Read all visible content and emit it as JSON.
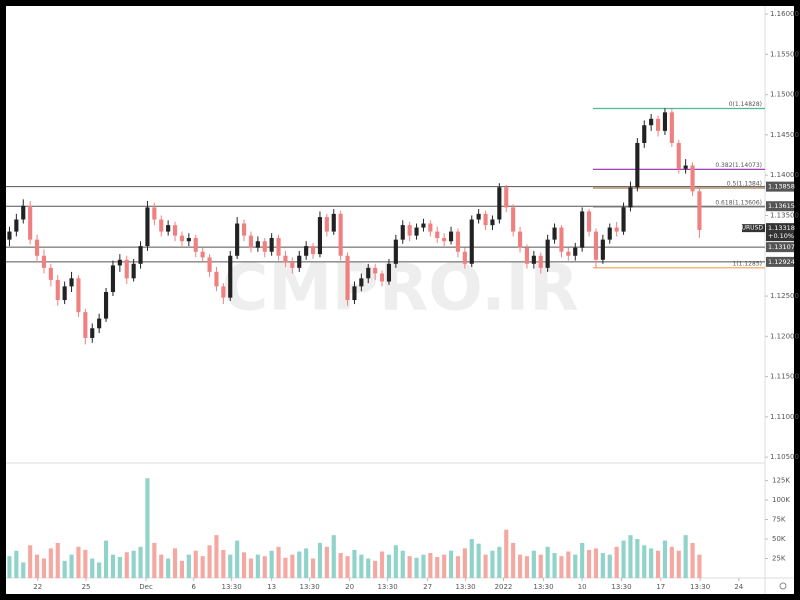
{
  "chart_data": {
    "type": "candlestick",
    "watermark": "CMPRO.IR",
    "open": [
      1.132,
      1.133,
      1.1345,
      1.1362,
      1.132,
      1.13,
      1.1285,
      1.127,
      1.1245,
      1.1262,
      1.1272,
      1.123,
      1.1198,
      1.121,
      1.1222,
      1.1255,
      1.1288,
      1.1295,
      1.1272,
      1.129,
      1.1312,
      1.136,
      1.1345,
      1.133,
      1.1338,
      1.1325,
      1.1318,
      1.1322,
      1.1305,
      1.1298,
      1.128,
      1.1262,
      1.1248,
      1.13,
      1.134,
      1.1325,
      1.131,
      1.1318,
      1.1305,
      1.1322,
      1.13,
      1.1292,
      1.1285,
      1.13,
      1.1312,
      1.1302,
      1.1348,
      1.133,
      1.1352,
      1.13,
      1.1245,
      1.1262,
      1.1272,
      1.1285,
      1.1278,
      1.1268,
      1.129,
      1.132,
      1.1338,
      1.1325,
      1.1335,
      1.134,
      1.133,
      1.1322,
      1.1318,
      1.133,
      1.1305,
      1.129,
      1.1345,
      1.1352,
      1.1338,
      1.1345,
      1.1385,
      1.136,
      1.133,
      1.131,
      1.129,
      1.13,
      1.1285,
      1.132,
      1.1335,
      1.1305,
      1.13,
      1.131,
      1.1355,
      1.133,
      1.1295,
      1.132,
      1.1335,
      1.133,
      1.136,
      1.1385,
      1.144,
      1.1462,
      1.147,
      1.1455,
      1.1478,
      1.144,
      1.1408,
      1.1412,
      1.138
    ],
    "high": [
      1.1336,
      1.1352,
      1.137,
      1.1368,
      1.1326,
      1.1308,
      1.129,
      1.1276,
      1.1268,
      1.128,
      1.1276,
      1.1234,
      1.1216,
      1.1228,
      1.126,
      1.1294,
      1.1302,
      1.13,
      1.1296,
      1.1318,
      1.1368,
      1.1366,
      1.135,
      1.1344,
      1.1342,
      1.133,
      1.1328,
      1.1326,
      1.131,
      1.1302,
      1.1286,
      1.1266,
      1.1306,
      1.1348,
      1.1345,
      1.133,
      1.1324,
      1.1322,
      1.1328,
      1.1326,
      1.1306,
      1.1298,
      1.1306,
      1.1318,
      1.1316,
      1.1355,
      1.1352,
      1.1358,
      1.1356,
      1.1304,
      1.1268,
      1.1278,
      1.129,
      1.129,
      1.1282,
      1.1296,
      1.1326,
      1.1344,
      1.1342,
      1.134,
      1.1346,
      1.1344,
      1.1336,
      1.1328,
      1.1336,
      1.1334,
      1.131,
      1.135,
      1.1358,
      1.1356,
      1.135,
      1.139,
      1.1388,
      1.1364,
      1.1336,
      1.1314,
      1.1306,
      1.1304,
      1.1326,
      1.134,
      1.1338,
      1.131,
      1.1316,
      1.136,
      1.1358,
      1.1334,
      1.1326,
      1.134,
      1.1342,
      1.1366,
      1.1392,
      1.1446,
      1.1468,
      1.1476,
      1.1474,
      1.1483,
      1.1482,
      1.1444,
      1.142,
      1.1416,
      1.1384
    ],
    "low": [
      1.1312,
      1.1324,
      1.134,
      1.1314,
      1.1292,
      1.1278,
      1.1262,
      1.1238,
      1.124,
      1.1255,
      1.1224,
      1.119,
      1.1192,
      1.1204,
      1.1218,
      1.125,
      1.128,
      1.1265,
      1.1268,
      1.1284,
      1.1306,
      1.1338,
      1.1324,
      1.1325,
      1.1318,
      1.1312,
      1.1312,
      1.1298,
      1.1292,
      1.1274,
      1.1256,
      1.124,
      1.1244,
      1.1296,
      1.1318,
      1.1304,
      1.1305,
      1.1298,
      1.13,
      1.1294,
      1.1286,
      1.1278,
      1.128,
      1.1295,
      1.1296,
      1.1298,
      1.1324,
      1.1326,
      1.1294,
      1.1238,
      1.124,
      1.1256,
      1.1266,
      1.127,
      1.1262,
      1.1264,
      1.1285,
      1.1315,
      1.1318,
      1.132,
      1.133,
      1.1324,
      1.1316,
      1.1312,
      1.1314,
      1.1298,
      1.1284,
      1.1286,
      1.134,
      1.1332,
      1.1332,
      1.134,
      1.1354,
      1.1324,
      1.1304,
      1.1284,
      1.1284,
      1.1278,
      1.128,
      1.1315,
      1.1298,
      1.1294,
      1.1294,
      1.1305,
      1.1324,
      1.1285,
      1.129,
      1.1315,
      1.1324,
      1.1326,
      1.1355,
      1.138,
      1.1434,
      1.1455,
      1.1448,
      1.145,
      1.1435,
      1.1402,
      1.1402,
      1.1374,
      1.1322
    ],
    "close": [
      1.133,
      1.1345,
      1.1362,
      1.132,
      1.13,
      1.1285,
      1.127,
      1.1245,
      1.1262,
      1.1272,
      1.123,
      1.1198,
      1.121,
      1.1222,
      1.1255,
      1.1288,
      1.1295,
      1.1272,
      1.129,
      1.1312,
      1.136,
      1.1345,
      1.133,
      1.1338,
      1.1325,
      1.1318,
      1.1322,
      1.1305,
      1.1298,
      1.128,
      1.1262,
      1.1248,
      1.13,
      1.134,
      1.1325,
      1.131,
      1.1318,
      1.1305,
      1.1322,
      1.13,
      1.1292,
      1.1285,
      1.13,
      1.1312,
      1.1302,
      1.1348,
      1.133,
      1.1352,
      1.13,
      1.1245,
      1.1262,
      1.1272,
      1.1285,
      1.1278,
      1.1268,
      1.129,
      1.132,
      1.1338,
      1.1325,
      1.1335,
      1.134,
      1.133,
      1.1322,
      1.1318,
      1.133,
      1.1305,
      1.129,
      1.1345,
      1.1352,
      1.1338,
      1.1345,
      1.1385,
      1.136,
      1.133,
      1.131,
      1.129,
      1.13,
      1.1285,
      1.132,
      1.1335,
      1.1305,
      1.13,
      1.131,
      1.1355,
      1.133,
      1.1295,
      1.132,
      1.1335,
      1.133,
      1.136,
      1.1385,
      1.144,
      1.1462,
      1.147,
      1.1455,
      1.1478,
      1.144,
      1.1408,
      1.1412,
      1.138,
      1.1332
    ],
    "volume": [
      28000,
      35000,
      20000,
      42000,
      30000,
      25000,
      38000,
      45000,
      22000,
      30000,
      40000,
      36000,
      25000,
      20000,
      48000,
      30000,
      27000,
      33000,
      35000,
      40000,
      128000,
      45000,
      30000,
      25000,
      38000,
      22000,
      30000,
      35000,
      28000,
      42000,
      55000,
      36000,
      30000,
      48000,
      33000,
      25000,
      30000,
      28000,
      35000,
      40000,
      26000,
      30000,
      34000,
      38000,
      25000,
      45000,
      40000,
      55000,
      32000,
      28000,
      36000,
      30000,
      25000,
      22000,
      34000,
      30000,
      42000,
      35000,
      28000,
      26000,
      30000,
      32000,
      27000,
      30000,
      35000,
      28000,
      38000,
      50000,
      44000,
      30000,
      35000,
      40000,
      62000,
      45000,
      30000,
      28000,
      35000,
      30000,
      40000,
      32000,
      28000,
      34000,
      30000,
      45000,
      36000,
      38000,
      32000,
      30000,
      40000,
      48000,
      55000,
      50000,
      42000,
      38000,
      35000,
      48000,
      40000,
      35000,
      55000,
      45000,
      30000
    ],
    "up_color": "#222222",
    "down_color": "#f08080",
    "volume_up_color": "#8fd3cb",
    "volume_down_color": "#f5a7a1",
    "xlim": [
      0,
      110
    ],
    "xticks": [
      {
        "value": 4.6,
        "label": "22"
      },
      {
        "value": 11.6,
        "label": "25"
      },
      {
        "value": 20.3,
        "label": "Dec"
      },
      {
        "value": 27.2,
        "label": "6"
      },
      {
        "value": 32.7,
        "label": "13:30"
      },
      {
        "value": 38.5,
        "label": "13"
      },
      {
        "value": 44,
        "label": "13:30"
      },
      {
        "value": 49.8,
        "label": "20"
      },
      {
        "value": 55.3,
        "label": "13:30"
      },
      {
        "value": 61.1,
        "label": "27"
      },
      {
        "value": 66.6,
        "label": "13:30"
      },
      {
        "value": 72.1,
        "label": "2022"
      },
      {
        "value": 77.9,
        "label": "13:30"
      },
      {
        "value": 83.5,
        "label": "10"
      },
      {
        "value": 89.2,
        "label": "13:30"
      },
      {
        "value": 94.9,
        "label": "17"
      },
      {
        "value": 100.6,
        "label": "13:30"
      },
      {
        "value": 106.2,
        "label": "24"
      }
    ],
    "ylim": [
      1.1044,
      1.161
    ],
    "yticks": [
      {
        "value": 1.16,
        "label": "1.16000"
      },
      {
        "value": 1.155,
        "label": "1.15500"
      },
      {
        "value": 1.15,
        "label": "1.15000"
      },
      {
        "value": 1.145,
        "label": "1.14500"
      },
      {
        "value": 1.14,
        "label": "1.14000"
      },
      {
        "value": 1.135,
        "label": "1.13500"
      },
      {
        "value": 1.125,
        "label": "1.12500"
      },
      {
        "value": 1.12,
        "label": "1.12000"
      },
      {
        "value": 1.115,
        "label": "1.11500"
      },
      {
        "value": 1.11,
        "label": "1.11000"
      },
      {
        "value": 1.105,
        "label": "1.10500"
      }
    ],
    "volume_ylim": [
      0,
      145000
    ],
    "volume_yticks": [
      {
        "value": 125000,
        "label": "125K"
      },
      {
        "value": 100000,
        "label": "100K"
      },
      {
        "value": 75000,
        "label": "75K"
      },
      {
        "value": 50000,
        "label": "50K"
      },
      {
        "value": 25000,
        "label": "25K"
      }
    ],
    "levels": [
      {
        "value": 1.13858,
        "label": "1.13858"
      },
      {
        "value": 1.13615,
        "label": "1.13615"
      },
      {
        "value": 1.13107,
        "label": "1.13107"
      },
      {
        "value": 1.12924,
        "label": "1.12924"
      }
    ],
    "level_color": "#555555",
    "fib": [
      {
        "value": 1.14828,
        "label": "0(1.14828)",
        "color": "#4cbb8f"
      },
      {
        "value": 1.14073,
        "label": "0.382(1.14073)",
        "color": "#9c27b0"
      },
      {
        "value": 1.1384,
        "label": "0.5(1.1384)",
        "color": "#a07a48"
      },
      {
        "value": 1.13606,
        "label": "0.618(1.13606)",
        "color": "#888888"
      },
      {
        "value": 1.1285,
        "label": "1(1.1285)",
        "color": "#f0a050"
      }
    ],
    "last": {
      "symbol": "EURUSD",
      "price": {
        "value": 1.13318,
        "label": "1.13318"
      },
      "change": "+0.10%"
    }
  }
}
